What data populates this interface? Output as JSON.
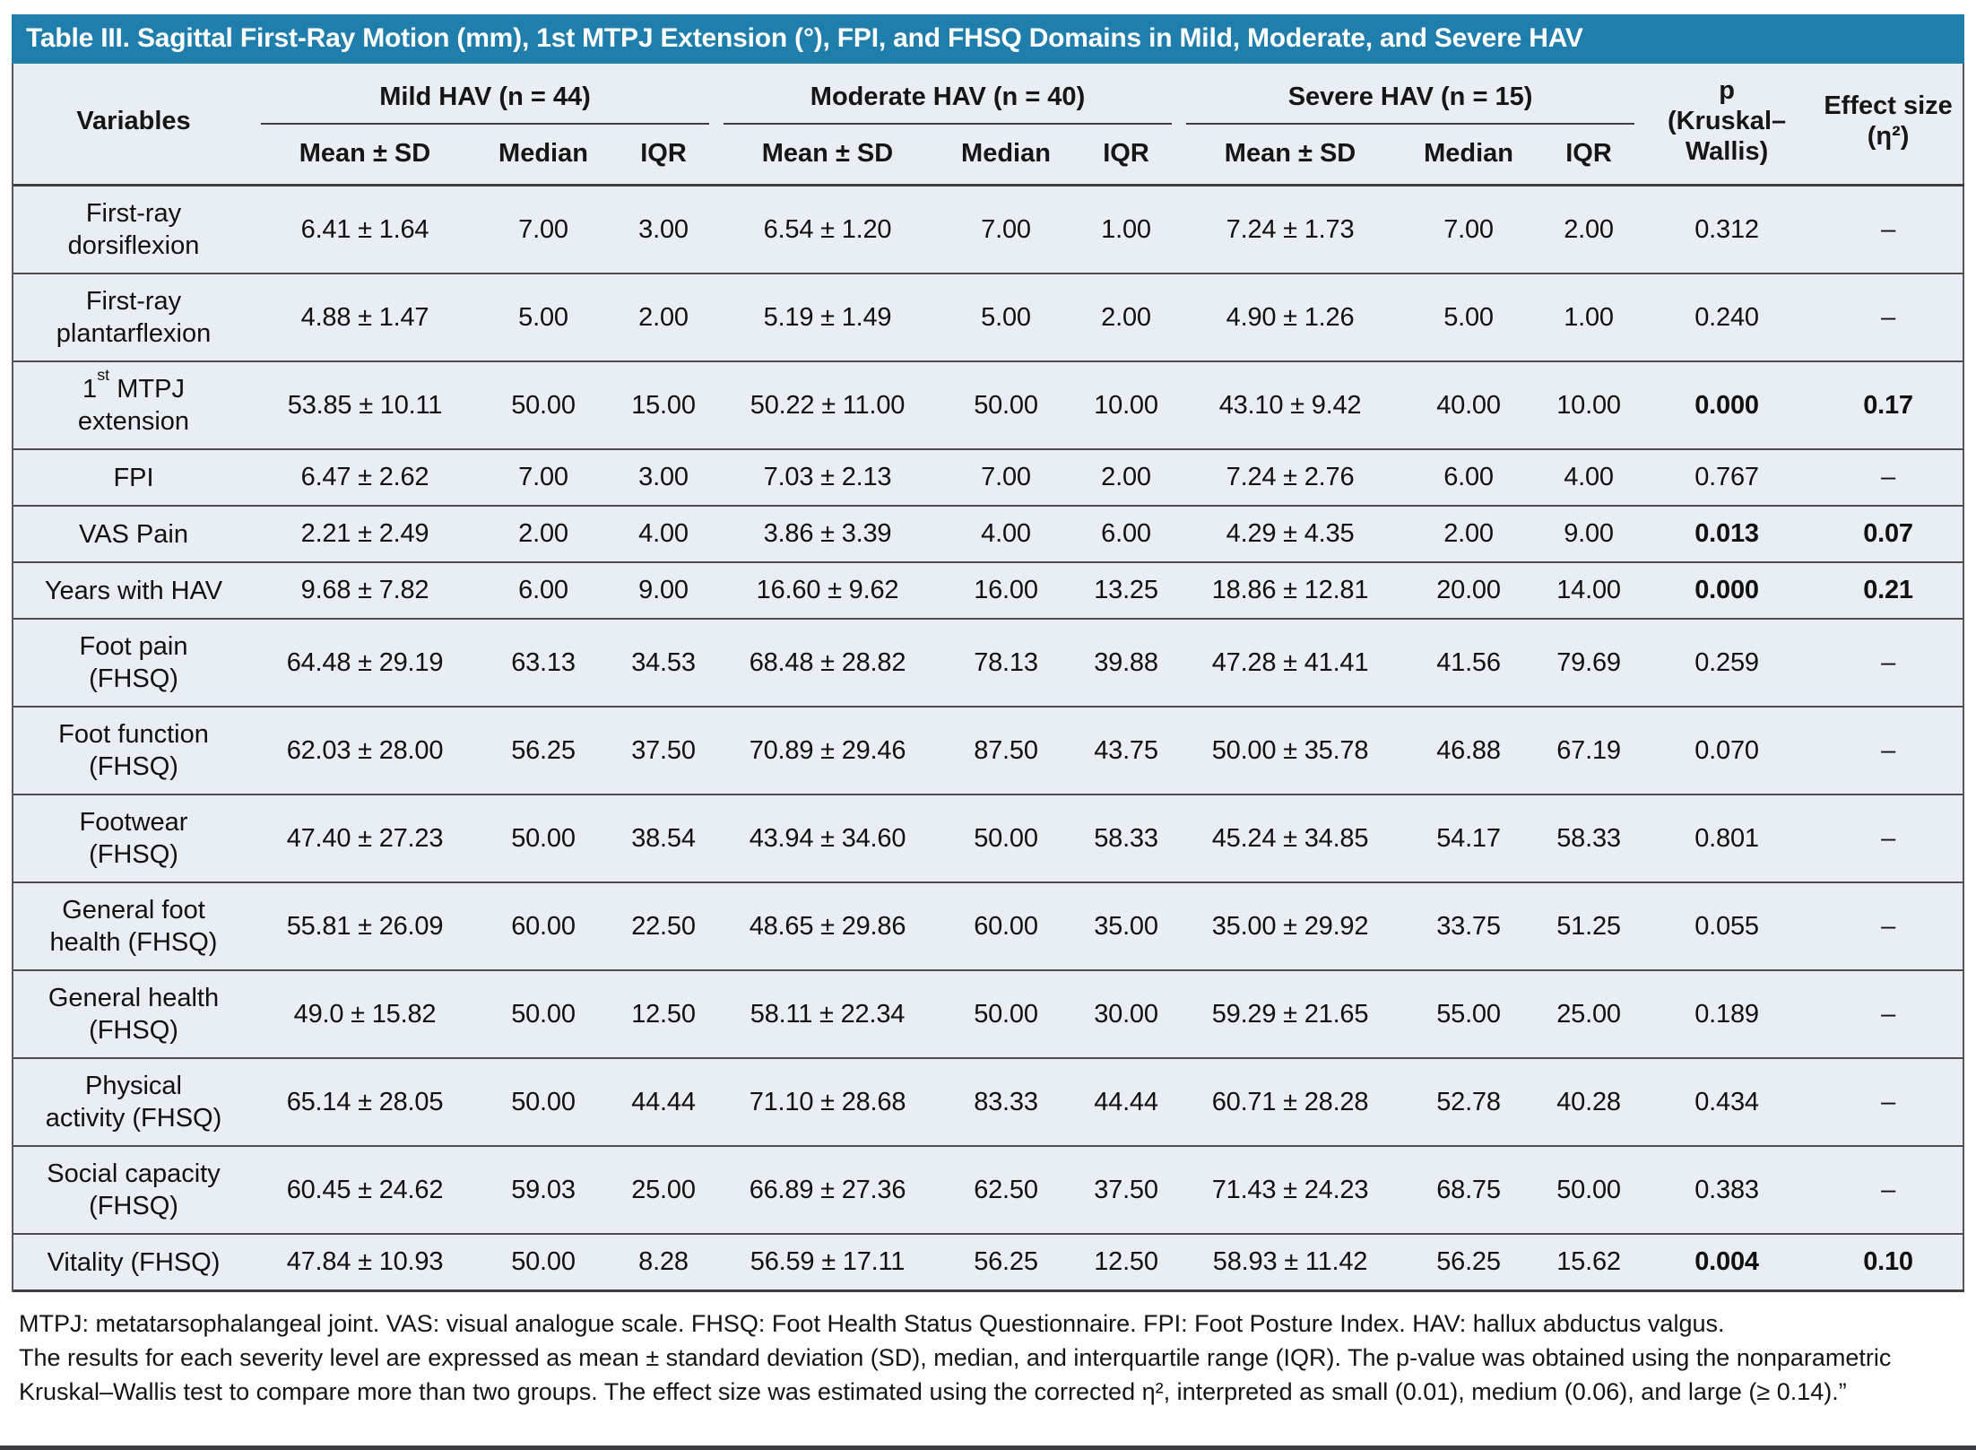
{
  "title": "Table III. Sagittal First-Ray Motion (mm), 1st MTPJ Extension (°), FPI, and FHSQ Domains in Mild, Moderate, and Severe HAV",
  "colors": {
    "title_bar_blue": "#1F7EAC",
    "table_body_bg": "#E9EDF4",
    "rule_gray": "#4d4d4d",
    "title_text": "#ffffff"
  },
  "table": {
    "header": {
      "variables_label": "Variables",
      "groups": [
        {
          "label": "Mild HAV (n = 44)"
        },
        {
          "label": "Moderate HAV (n = 40)"
        },
        {
          "label": "Severe HAV (n = 15)"
        }
      ],
      "sub_columns": [
        "Mean ± SD",
        "Median",
        "IQR"
      ],
      "sub_keys": [
        "mean-sd",
        "median",
        "iqr"
      ],
      "p_label": "p",
      "p_sub": "(Kruskal–Wallis)",
      "effect_label": "Effect size",
      "effect_sub": "(η²)"
    },
    "rows": [
      {
        "label_lines": [
          "First-ray",
          "dorsiflexion"
        ],
        "mild": [
          "6.41 ± 1.64",
          "7.00",
          "3.00"
        ],
        "moderate": [
          "6.54 ± 1.20",
          "7.00",
          "1.00"
        ],
        "severe": [
          "7.24 ± 1.73",
          "7.00",
          "2.00"
        ],
        "p": "0.312",
        "effect": "–",
        "bold": false
      },
      {
        "label_lines": [
          "First-ray",
          "plantarflexion"
        ],
        "mild": [
          "4.88 ± 1.47",
          "5.00",
          "2.00"
        ],
        "moderate": [
          "5.19 ± 1.49",
          "5.00",
          "2.00"
        ],
        "severe": [
          "4.90 ± 1.26",
          "5.00",
          "1.00"
        ],
        "p": "0.240",
        "effect": "–",
        "bold": false
      },
      {
        "label_lines": [
          "1st MTPJ",
          "extension"
        ],
        "mild": [
          "53.85 ± 10.11",
          "50.00",
          "15.00"
        ],
        "moderate": [
          "50.22 ± 11.00",
          "50.00",
          "10.00"
        ],
        "severe": [
          "43.10 ± 9.42",
          "40.00",
          "10.00"
        ],
        "p": "0.000",
        "effect": "0.17",
        "bold": true
      },
      {
        "label_lines": [
          "FPI"
        ],
        "mild": [
          "6.47 ± 2.62",
          "7.00",
          "3.00"
        ],
        "moderate": [
          "7.03 ± 2.13",
          "7.00",
          "2.00"
        ],
        "severe": [
          "7.24 ± 2.76",
          "6.00",
          "4.00"
        ],
        "p": "0.767",
        "effect": "–",
        "bold": false
      },
      {
        "label_lines": [
          "VAS Pain"
        ],
        "mild": [
          "2.21 ± 2.49",
          "2.00",
          "4.00"
        ],
        "moderate": [
          "3.86 ± 3.39",
          "4.00",
          "6.00"
        ],
        "severe": [
          "4.29 ± 4.35",
          "2.00",
          "9.00"
        ],
        "p": "0.013",
        "effect": "0.07",
        "bold": true
      },
      {
        "label_lines": [
          "Years with HAV"
        ],
        "mild": [
          "9.68 ± 7.82",
          "6.00",
          "9.00"
        ],
        "moderate": [
          "16.60 ± 9.62",
          "16.00",
          "13.25"
        ],
        "severe": [
          "18.86 ± 12.81",
          "20.00",
          "14.00"
        ],
        "p": "0.000",
        "effect": "0.21",
        "bold": true
      },
      {
        "label_lines": [
          "Foot pain",
          "(FHSQ)"
        ],
        "mild": [
          "64.48 ± 29.19",
          "63.13",
          "34.53"
        ],
        "moderate": [
          "68.48 ± 28.82",
          "78.13",
          "39.88"
        ],
        "severe": [
          "47.28 ± 41.41",
          "41.56",
          "79.69"
        ],
        "p": "0.259",
        "effect": "–",
        "bold": false
      },
      {
        "label_lines": [
          "Foot function",
          "(FHSQ)"
        ],
        "mild": [
          "62.03 ± 28.00",
          "56.25",
          "37.50"
        ],
        "moderate": [
          "70.89 ± 29.46",
          "87.50",
          "43.75"
        ],
        "severe": [
          "50.00 ± 35.78",
          "46.88",
          "67.19"
        ],
        "p": "0.070",
        "effect": "–",
        "bold": false
      },
      {
        "label_lines": [
          "Footwear",
          "(FHSQ)"
        ],
        "mild": [
          "47.40 ± 27.23",
          "50.00",
          "38.54"
        ],
        "moderate": [
          "43.94 ± 34.60",
          "50.00",
          "58.33"
        ],
        "severe": [
          "45.24 ± 34.85",
          "54.17",
          "58.33"
        ],
        "p": "0.801",
        "effect": "–",
        "bold": false
      },
      {
        "label_lines": [
          "General foot",
          "health (FHSQ)"
        ],
        "mild": [
          "55.81 ± 26.09",
          "60.00",
          "22.50"
        ],
        "moderate": [
          "48.65 ± 29.86",
          "60.00",
          "35.00"
        ],
        "severe": [
          "35.00 ± 29.92",
          "33.75",
          "51.25"
        ],
        "p": "0.055",
        "effect": "–",
        "bold": false
      },
      {
        "label_lines": [
          "General health",
          "(FHSQ)"
        ],
        "mild": [
          "49.0 ± 15.82",
          "50.00",
          "12.50"
        ],
        "moderate": [
          "58.11 ± 22.34",
          "50.00",
          "30.00"
        ],
        "severe": [
          "59.29 ± 21.65",
          "55.00",
          "25.00"
        ],
        "p": "0.189",
        "effect": "–",
        "bold": false
      },
      {
        "label_lines": [
          "Physical",
          "activity (FHSQ)"
        ],
        "mild": [
          "65.14 ± 28.05",
          "50.00",
          "44.44"
        ],
        "moderate": [
          "71.10 ± 28.68",
          "83.33",
          "44.44"
        ],
        "severe": [
          "60.71 ± 28.28",
          "52.78",
          "40.28"
        ],
        "p": "0.434",
        "effect": "–",
        "bold": false
      },
      {
        "label_lines": [
          "Social capacity",
          "(FHSQ)"
        ],
        "mild": [
          "60.45 ± 24.62",
          "59.03",
          "25.00"
        ],
        "moderate": [
          "66.89 ± 27.36",
          "62.50",
          "37.50"
        ],
        "severe": [
          "71.43 ± 24.23",
          "68.75",
          "50.00"
        ],
        "p": "0.383",
        "effect": "–",
        "bold": false
      },
      {
        "label_lines": [
          "Vitality (FHSQ)"
        ],
        "mild": [
          "47.84 ± 10.93",
          "50.00",
          "8.28"
        ],
        "moderate": [
          "56.59 ± 17.11",
          "56.25",
          "12.50"
        ],
        "severe": [
          "58.93 ± 11.42",
          "56.25",
          "15.62"
        ],
        "p": "0.004",
        "effect": "0.10",
        "bold": true
      }
    ]
  },
  "footnotes": {
    "abbreviations": "MTPJ: metatarsophalangeal joint. VAS: visual analogue scale. FHSQ: Foot Health Status Questionnaire. FPI: Foot Posture Index. HAV: hallux abductus valgus.",
    "methods": "The results for each severity level are expressed as mean ± standard deviation (SD), median, and interquartile range (IQR). The p-value was obtained using the nonparametric Kruskal–Wallis test to compare more than two groups. The effect size was estimated using the corrected η², interpreted as small (0.01), medium (0.06), and large (≥ 0.14).”"
  }
}
